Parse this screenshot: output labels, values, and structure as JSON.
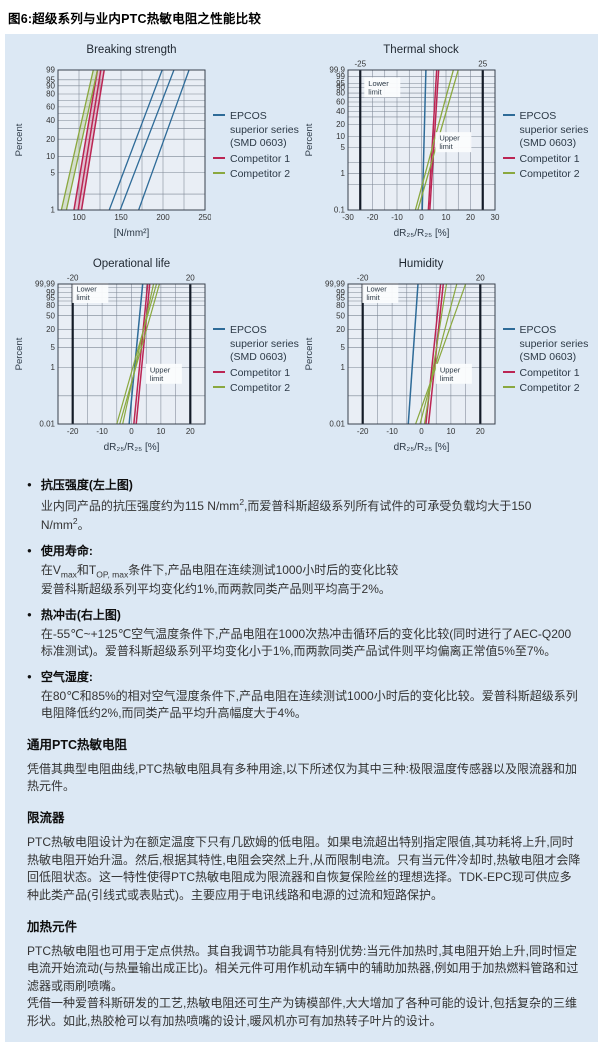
{
  "page_title": "图6:超级系列与业内PTC热敏电阻之性能比较",
  "colors": {
    "epcos": "#2e6b98",
    "competitor1": "#bb2553",
    "competitor2": "#8aa83f",
    "panel_bg": "#dce8f4",
    "plot_bg": "#e9eef5",
    "grid": "#7c8694",
    "frame": "#39414d",
    "limit": "#141b27",
    "tick_text": "#333333"
  },
  "legend": {
    "entries": [
      {
        "label_lines": [
          "EPCOS",
          "superior series",
          "(SMD 0603)"
        ],
        "color": "epcos"
      },
      {
        "label_lines": [
          "Competitor 1"
        ],
        "color": "competitor1"
      },
      {
        "label_lines": [
          "Competitor 2"
        ],
        "color": "competitor2"
      }
    ]
  },
  "chart_data": [
    {
      "id": "breaking-strength",
      "type": "line",
      "title": "Breaking strength",
      "ylabel": "Percent",
      "xlabel": "[N/mm²]",
      "x_min": 75,
      "x_max": 250,
      "x_grid_step": 25,
      "x_ticks": [
        100,
        150,
        200,
        250
      ],
      "p_min": 1,
      "p_max": 99,
      "y_ticks": [
        [
          99,
          "99"
        ],
        [
          95,
          "95"
        ],
        [
          90,
          "90"
        ],
        [
          80,
          "80"
        ],
        [
          60,
          "60"
        ],
        [
          40,
          "40"
        ],
        [
          20,
          "20"
        ],
        [
          10,
          "10"
        ],
        [
          5,
          "5"
        ],
        [
          1,
          "1"
        ]
      ],
      "y_grid": [
        99,
        95,
        90,
        80,
        70,
        60,
        50,
        40,
        30,
        20,
        10,
        5,
        2,
        1
      ],
      "series": [
        {
          "name": "EPCOS superior series (SMD 0603)",
          "color": "epcos",
          "width": 1.3,
          "lines": [
            [
              136,
              199
            ],
            [
              149,
              213
            ],
            [
              171,
              231
            ]
          ]
        },
        {
          "name": "Competitor 1",
          "color": "competitor1",
          "width": 1.5,
          "band": true,
          "lines": [
            [
              94,
              122
            ],
            [
              99,
              126
            ],
            [
              103,
              130
            ]
          ]
        },
        {
          "name": "Competitor 2",
          "color": "competitor2",
          "width": 1.3,
          "band": true,
          "lines": [
            [
              79,
              117
            ],
            [
              85,
              122
            ]
          ]
        }
      ]
    },
    {
      "id": "thermal-shock",
      "type": "line",
      "title": "Thermal shock",
      "ylabel": "Percent",
      "xlabel": "dR₂₅/R₂₅ [%]",
      "x_min": -30,
      "x_max": 30,
      "x_grid_step": 5,
      "x_ticks": [
        -30,
        -20,
        -10,
        0,
        10,
        20,
        30
      ],
      "p_min": 0.1,
      "p_max": 99.9,
      "y_ticks": [
        [
          99.9,
          "99.9"
        ],
        [
          99,
          "99"
        ],
        [
          95,
          "95"
        ],
        [
          90,
          "90"
        ],
        [
          80,
          "80"
        ],
        [
          60,
          "60"
        ],
        [
          40,
          "40"
        ],
        [
          20,
          "20"
        ],
        [
          10,
          "10"
        ],
        [
          5,
          "5"
        ],
        [
          1,
          "1"
        ],
        [
          0.1,
          "0.1"
        ]
      ],
      "y_grid": [
        99.9,
        99,
        95,
        90,
        80,
        70,
        60,
        50,
        40,
        30,
        20,
        10,
        5,
        2,
        1,
        0.5,
        0.1
      ],
      "limits": {
        "lower": {
          "x": -25,
          "label": "-25"
        },
        "upper": {
          "x": 25,
          "label": "25"
        }
      },
      "annotations": [
        {
          "lines": [
            "Lower",
            "limit"
          ],
          "x": -16,
          "p": 90
        },
        {
          "lines": [
            "Upper",
            "limit"
          ],
          "x": 13,
          "p": 7
        }
      ],
      "series": [
        {
          "name": "EPCOS superior series (SMD 0603)",
          "color": "epcos",
          "width": 1.5,
          "lines": [
            [
              0.3,
              1.8
            ]
          ]
        },
        {
          "name": "Competitor 1",
          "color": "competitor1",
          "width": 1.5,
          "lines": [
            [
              2.8,
              6.2
            ],
            [
              3.4,
              7.0
            ]
          ]
        },
        {
          "name": "Competitor 2",
          "color": "competitor2",
          "width": 1.3,
          "lines": [
            [
              -2.5,
              13
            ],
            [
              -1.5,
              15
            ]
          ]
        }
      ]
    },
    {
      "id": "operational-life",
      "type": "line",
      "title": "Operational life",
      "ylabel": "Percent",
      "xlabel": "dR₂₅/R₂₅ [%]",
      "x_min": -25,
      "x_max": 25,
      "x_grid_step": 5,
      "x_ticks": [
        -20,
        -10,
        0,
        10,
        20
      ],
      "p_min": 0.01,
      "p_max": 99.99,
      "y_ticks": [
        [
          99.99,
          "99,99"
        ],
        [
          99,
          "99"
        ],
        [
          95,
          "95"
        ],
        [
          80,
          "80"
        ],
        [
          50,
          "50"
        ],
        [
          20,
          "20"
        ],
        [
          5,
          "5"
        ],
        [
          1,
          "1"
        ],
        [
          0.01,
          "0.01"
        ]
      ],
      "y_grid": [
        99.99,
        99.9,
        99,
        95,
        90,
        80,
        50,
        20,
        10,
        5,
        1,
        0.1,
        0.01
      ],
      "limits": {
        "lower": {
          "x": -20,
          "label": "-20"
        },
        "upper": {
          "x": 20,
          "label": "20"
        }
      },
      "annotations": [
        {
          "lines": [
            "Lower",
            "limit"
          ],
          "x": -14,
          "p": 98.8
        },
        {
          "lines": [
            "Upper",
            "limit"
          ],
          "x": 11,
          "p": 0.6
        }
      ],
      "series": [
        {
          "name": "EPCOS superior series (SMD 0603)",
          "color": "epcos",
          "width": 1.5,
          "lines": [
            [
              -0.8,
              3.8
            ]
          ]
        },
        {
          "name": "Competitor 1",
          "color": "competitor1",
          "width": 1.5,
          "lines": [
            [
              0.8,
              5.5
            ],
            [
              1.6,
              6.2
            ]
          ]
        },
        {
          "name": "Competitor 2",
          "color": "competitor2",
          "width": 1.2,
          "lines": [
            [
              -5,
              8.5
            ],
            [
              -4,
              9.5
            ],
            [
              -3,
              7.5
            ]
          ]
        }
      ]
    },
    {
      "id": "humidity",
      "type": "line",
      "title": "Humidity",
      "ylabel": "Percent",
      "xlabel": "dR₂₅/R₂₅ [%]",
      "x_min": -25,
      "x_max": 25,
      "x_grid_step": 5,
      "x_ticks": [
        -20,
        -10,
        0,
        10,
        20
      ],
      "p_min": 0.01,
      "p_max": 99.99,
      "y_ticks": [
        [
          99.99,
          "99,99"
        ],
        [
          99,
          "99"
        ],
        [
          95,
          "95"
        ],
        [
          80,
          "80"
        ],
        [
          50,
          "50"
        ],
        [
          20,
          "20"
        ],
        [
          5,
          "5"
        ],
        [
          1,
          "1"
        ],
        [
          0.01,
          "0.01"
        ]
      ],
      "y_grid": [
        99.99,
        99.9,
        99,
        95,
        90,
        80,
        50,
        20,
        10,
        5,
        1,
        0.1,
        0.01
      ],
      "limits": {
        "lower": {
          "x": -20,
          "label": "-20"
        },
        "upper": {
          "x": 20,
          "label": "20"
        }
      },
      "annotations": [
        {
          "lines": [
            "Lower",
            "limit"
          ],
          "x": -14,
          "p": 98.8
        },
        {
          "lines": [
            "Upper",
            "limit"
          ],
          "x": 11,
          "p": 0.6
        }
      ],
      "series": [
        {
          "name": "EPCOS superior series (SMD 0603)",
          "color": "epcos",
          "width": 1.5,
          "lines": [
            [
              -4.5,
              -1.2
            ]
          ]
        },
        {
          "name": "Competitor 1",
          "color": "competitor1",
          "width": 1.5,
          "lines": [
            [
              1.5,
              6.5
            ],
            [
              2.4,
              7.4
            ]
          ]
        },
        {
          "name": "Competitor 2",
          "color": "competitor2",
          "width": 1.2,
          "lines": [
            [
              -2,
              15
            ],
            [
              -0.5,
              12
            ],
            [
              1,
              8.5
            ]
          ]
        }
      ]
    }
  ],
  "bullets": [
    {
      "heading": "抗压强度(左上图)",
      "paragraphs": [
        [
          {
            "t": "业内同产品的抗压强度约为115 N/mm"
          },
          {
            "t": "2",
            "s": "sup"
          },
          {
            "t": ",而爱普科斯超级系列所有试件的可承受负载均大于150 N/mm"
          },
          {
            "t": "2",
            "s": "sup"
          },
          {
            "t": "。"
          }
        ]
      ]
    },
    {
      "heading": "使用寿命:",
      "paragraphs": [
        [
          {
            "t": "在V"
          },
          {
            "t": "max",
            "s": "sub"
          },
          {
            "t": "和T"
          },
          {
            "t": "OP, max",
            "s": "sub"
          },
          {
            "t": "条件下,产品电阻在连续测试1000小时后的变化比较"
          }
        ],
        [
          {
            "t": "爱普科斯超级系列平均变化约1%,而两款同类产品则平均高于2%。"
          }
        ]
      ]
    },
    {
      "heading": "热冲击(右上图)",
      "paragraphs": [
        [
          {
            "t": "在-55℃~+125℃空气温度条件下,产品电阻在1000次热冲击循环后的变化比较(同时进行了AEC-Q200标准测试)。爱普科斯超级系列平均变化小于1%,而两款同类产品试件则平均偏离正常值5%至7%。"
          }
        ]
      ]
    },
    {
      "heading": "空气湿度:",
      "paragraphs": [
        [
          {
            "t": "在80℃和85%的相对空气湿度条件下,产品电阻在连续测试1000小时后的变化比较。爱普科斯超级系列电阻降低约2%,而同类产品平均升高幅度大于4%。"
          }
        ]
      ]
    }
  ],
  "sections": [
    {
      "heading": "通用PTC热敏电阻",
      "paragraphs": [
        "凭借其典型电阻曲线,PTC热敏电阻具有多种用途,以下所述仅为其中三种:极限温度传感器以及限流器和加热元件。"
      ]
    },
    {
      "heading": "限流器",
      "paragraphs": [
        "PTC热敏电阻设计为在额定温度下只有几欧姆的低电阻。如果电流超出特别指定限值,其功耗将上升,同时热敏电阻开始升温。然后,根据其特性,电阻会突然上升,从而限制电流。只有当元件冷却时,热敏电阻才会降回低阻状态。这一特性使得PTC热敏电阻成为限流器和自恢复保险丝的理想选择。TDK-EPC现可供应多种此类产品(引线式或表贴式)。主要应用于电讯线路和电源的过流和短路保护。"
      ]
    },
    {
      "heading": "加热元件",
      "paragraphs": [
        "PTC热敏电阻也可用于定点供热。其自我调节功能具有特别优势:当元件加热时,其电阻开始上升,同时恒定电流开始流动(与热量输出成正比)。相关元件可用作机动车辆中的辅助加热器,例如用于加热燃料管路和过滤器或雨刷喷嘴。",
        "凭借一种爱普科斯研发的工艺,热敏电阻还可生产为铸模部件,大大增加了各种可能的设计,包括复杂的三维形状。如此,热胶枪可以有加热喷嘴的设计,暖风机亦可有加热转子叶片的设计。"
      ]
    }
  ]
}
